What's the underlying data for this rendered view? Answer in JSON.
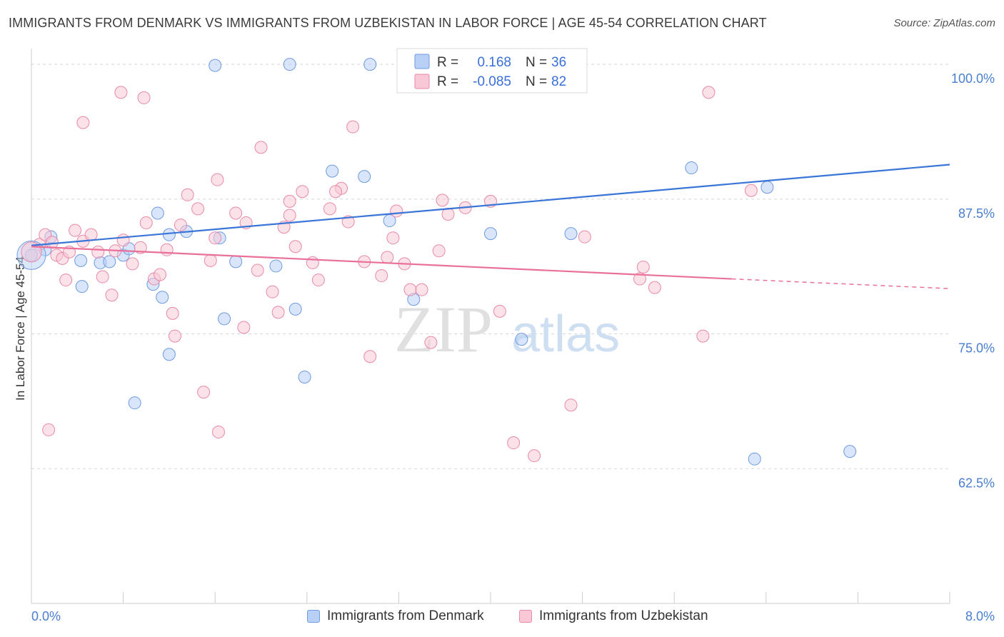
{
  "title": "IMMIGRANTS FROM DENMARK VS IMMIGRANTS FROM UZBEKISTAN IN LABOR FORCE | AGE 45-54 CORRELATION CHART",
  "source": "Source: ZipAtlas.com",
  "watermark": {
    "zip": "ZIP",
    "atlas": "atlas"
  },
  "colors": {
    "blue_fill": "#b8d0f5",
    "blue_stroke": "#6f9be0",
    "blue_line": "#3a75d8",
    "pink_fill": "#f8c8d6",
    "pink_stroke": "#e88aa8",
    "pink_line": "#e8709a",
    "tick_text": "#4a7fd0",
    "grid": "#d8d8d8"
  },
  "legend": {
    "rows": [
      {
        "r_label": "R =",
        "r_value": "0.168",
        "n_label": "N =",
        "n_value": "36"
      },
      {
        "r_label": "R =",
        "r_value": "-0.085",
        "n_label": "N =",
        "n_value": "82"
      }
    ]
  },
  "bottom_legend": {
    "denmark": "Immigrants from Denmark",
    "uzbekistan": "Immigrants from Uzbekistan"
  },
  "chart_data": {
    "type": "scatter",
    "title": "IMMIGRANTS FROM DENMARK VS IMMIGRANTS FROM UZBEKISTAN IN LABOR FORCE | AGE 45-54 CORRELATION CHART",
    "xlabel": "",
    "ylabel": "In Labor Force | Age 45-54",
    "xlim": [
      0,
      8
    ],
    "ylim": [
      50,
      101.2
    ],
    "x_tick_labels": [
      "0.0%",
      "8.0%"
    ],
    "y_ticks": [
      62.5,
      75.0,
      87.5,
      100.0
    ],
    "y_tick_labels": [
      "62.5%",
      "75.0%",
      "87.5%",
      "100.0%"
    ],
    "grid": true,
    "legend_position": "top-center",
    "series": [
      {
        "name": "Immigrants from Denmark",
        "color": "#6f9be0",
        "r": 0.168,
        "n": 36,
        "trend": {
          "x": [
            0.0,
            8.0
          ],
          "y": [
            83.2,
            90.7
          ]
        },
        "points": [
          [
            0.0,
            82.3
          ],
          [
            0.12,
            82.8
          ],
          [
            0.17,
            84.0
          ],
          [
            0.43,
            81.8
          ],
          [
            0.44,
            79.4
          ],
          [
            0.8,
            82.3
          ],
          [
            0.85,
            82.9
          ],
          [
            0.6,
            81.6
          ],
          [
            0.68,
            81.7
          ],
          [
            1.06,
            79.6
          ],
          [
            1.14,
            78.4
          ],
          [
            1.2,
            73.1
          ],
          [
            0.9,
            68.6
          ],
          [
            1.1,
            86.2
          ],
          [
            1.2,
            84.2
          ],
          [
            1.35,
            84.5
          ],
          [
            1.64,
            83.9
          ],
          [
            1.78,
            81.7
          ],
          [
            1.68,
            76.4
          ],
          [
            2.13,
            81.3
          ],
          [
            2.3,
            77.3
          ],
          [
            2.38,
            71.0
          ],
          [
            2.62,
            90.1
          ],
          [
            2.9,
            89.6
          ],
          [
            3.12,
            85.5
          ],
          [
            3.33,
            78.2
          ],
          [
            4.27,
            74.5
          ],
          [
            4.0,
            84.3
          ],
          [
            4.7,
            84.3
          ],
          [
            6.41,
            88.6
          ],
          [
            5.75,
            90.4
          ],
          [
            6.3,
            63.4
          ],
          [
            7.13,
            64.1
          ],
          [
            1.6,
            99.9
          ],
          [
            2.25,
            100.0
          ],
          [
            2.95,
            100.0
          ]
        ]
      },
      {
        "name": "Immigrants from Uzbekistan",
        "color": "#e88aa8",
        "r": -0.085,
        "n": 82,
        "trend": {
          "x": [
            0.0,
            6.1
          ],
          "y": [
            83.1,
            80.1
          ]
        },
        "trend_dashed": {
          "x": [
            6.1,
            8.0
          ],
          "y": [
            80.1,
            79.2
          ]
        },
        "points": [
          [
            0.07,
            83.3
          ],
          [
            0.12,
            84.2
          ],
          [
            0.18,
            83.5
          ],
          [
            0.22,
            82.3
          ],
          [
            0.27,
            82.0
          ],
          [
            0.3,
            80.0
          ],
          [
            0.33,
            82.6
          ],
          [
            0.38,
            84.6
          ],
          [
            0.45,
            83.6
          ],
          [
            0.52,
            84.2
          ],
          [
            0.58,
            82.6
          ],
          [
            0.62,
            80.3
          ],
          [
            0.7,
            78.6
          ],
          [
            0.73,
            82.7
          ],
          [
            0.8,
            83.7
          ],
          [
            0.88,
            81.5
          ],
          [
            0.95,
            83.0
          ],
          [
            1.0,
            85.3
          ],
          [
            1.07,
            80.1
          ],
          [
            1.12,
            80.5
          ],
          [
            1.18,
            82.8
          ],
          [
            1.23,
            76.9
          ],
          [
            1.3,
            85.1
          ],
          [
            1.36,
            87.9
          ],
          [
            1.45,
            86.6
          ],
          [
            1.56,
            81.8
          ],
          [
            1.6,
            83.9
          ],
          [
            1.62,
            89.3
          ],
          [
            1.78,
            86.2
          ],
          [
            1.87,
            85.3
          ],
          [
            1.97,
            80.9
          ],
          [
            2.1,
            78.9
          ],
          [
            2.15,
            77.0
          ],
          [
            2.2,
            84.9
          ],
          [
            2.25,
            86.0
          ],
          [
            2.3,
            83.1
          ],
          [
            2.36,
            88.2
          ],
          [
            2.45,
            81.6
          ],
          [
            2.5,
            80.0
          ],
          [
            2.6,
            86.6
          ],
          [
            2.7,
            88.5
          ],
          [
            2.76,
            85.4
          ],
          [
            2.9,
            81.7
          ],
          [
            2.95,
            72.9
          ],
          [
            3.05,
            80.4
          ],
          [
            3.1,
            82.1
          ],
          [
            3.18,
            86.4
          ],
          [
            3.25,
            81.5
          ],
          [
            3.3,
            79.1
          ],
          [
            3.4,
            79.1
          ],
          [
            3.48,
            74.2
          ],
          [
            3.58,
            87.4
          ],
          [
            3.63,
            86.1
          ],
          [
            3.78,
            86.7
          ],
          [
            4.0,
            87.3
          ],
          [
            4.08,
            77.1
          ],
          [
            4.2,
            64.9
          ],
          [
            4.38,
            63.7
          ],
          [
            4.7,
            68.4
          ],
          [
            4.82,
            84.0
          ],
          [
            5.3,
            80.1
          ],
          [
            5.33,
            81.2
          ],
          [
            5.43,
            79.3
          ],
          [
            5.85,
            74.8
          ],
          [
            6.27,
            88.3
          ],
          [
            0.15,
            66.1
          ],
          [
            0.45,
            94.6
          ],
          [
            0.78,
            97.4
          ],
          [
            0.98,
            96.9
          ],
          [
            1.25,
            74.8
          ],
          [
            1.5,
            69.6
          ],
          [
            1.63,
            65.9
          ],
          [
            1.85,
            75.6
          ],
          [
            2.0,
            92.3
          ],
          [
            2.25,
            87.3
          ],
          [
            2.8,
            94.2
          ],
          [
            3.15,
            83.9
          ],
          [
            3.55,
            82.7
          ],
          [
            2.65,
            88.2
          ],
          [
            3.92,
            98.3
          ],
          [
            4.05,
            100.0
          ],
          [
            5.9,
            97.4
          ]
        ]
      }
    ]
  }
}
